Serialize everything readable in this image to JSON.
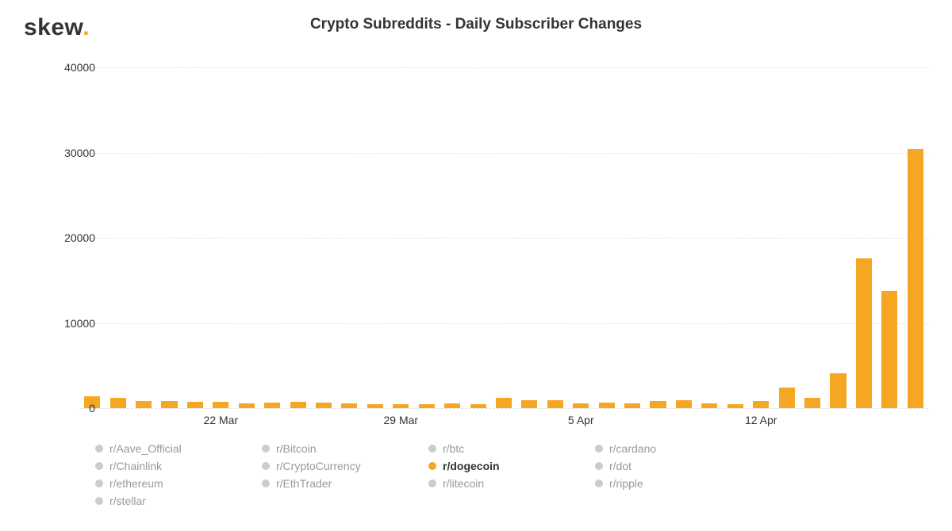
{
  "logo": {
    "text": "skew",
    "accent": "."
  },
  "title": "Crypto Subreddits - Daily Subscriber Changes",
  "chart": {
    "type": "bar",
    "background_color": "#ffffff",
    "grid_color": "#e4e4e4",
    "grid_dash": true,
    "bar_color": "#f5a623",
    "bar_width_ratio": 0.62,
    "ylim": [
      0,
      40000
    ],
    "ytick_step": 10000,
    "yticks": [
      {
        "value": 0,
        "label": "0"
      },
      {
        "value": 10000,
        "label": "10000"
      },
      {
        "value": 20000,
        "label": "20000"
      },
      {
        "value": 30000,
        "label": "30000"
      },
      {
        "value": 40000,
        "label": "40000"
      }
    ],
    "axis_fontsize": 14,
    "axis_color": "#333333",
    "xticks": [
      {
        "index": 5,
        "label": "22 Mar"
      },
      {
        "index": 12,
        "label": "29 Mar"
      },
      {
        "index": 19,
        "label": "5 Apr"
      },
      {
        "index": 26,
        "label": "12 Apr"
      }
    ],
    "values": [
      1400,
      1250,
      850,
      800,
      750,
      700,
      600,
      650,
      750,
      650,
      600,
      450,
      450,
      500,
      550,
      500,
      1200,
      950,
      900,
      600,
      650,
      550,
      850,
      950,
      600,
      500,
      850,
      2400,
      1200,
      4100,
      17600,
      13800,
      30400
    ]
  },
  "legend": {
    "columns": 4,
    "inactive_color": "#999999",
    "inactive_dot": "#cccccc",
    "active_color": "#333333",
    "active_dot": "#f5a623",
    "items": [
      {
        "label": "r/Aave_Official",
        "active": false
      },
      {
        "label": "r/Bitcoin",
        "active": false
      },
      {
        "label": "r/btc",
        "active": false
      },
      {
        "label": "r/cardano",
        "active": false
      },
      {
        "label": "r/Chainlink",
        "active": false
      },
      {
        "label": "r/CryptoCurrency",
        "active": false
      },
      {
        "label": "r/dogecoin",
        "active": true
      },
      {
        "label": "r/dot",
        "active": false
      },
      {
        "label": "r/ethereum",
        "active": false
      },
      {
        "label": "r/EthTrader",
        "active": false
      },
      {
        "label": "r/litecoin",
        "active": false
      },
      {
        "label": "r/ripple",
        "active": false
      },
      {
        "label": "r/stellar",
        "active": false
      }
    ]
  }
}
